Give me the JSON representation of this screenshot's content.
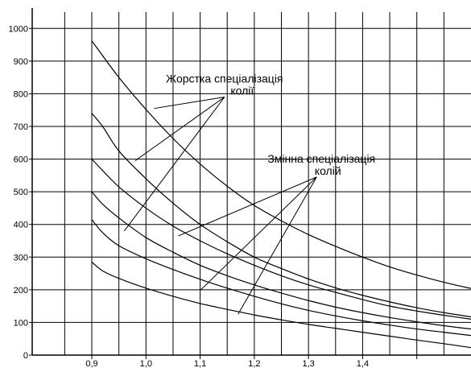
{
  "chart_data": {
    "type": "line",
    "title": "",
    "xlabel": "",
    "ylabel": "",
    "xlim": [
      0.79,
      1.6
    ],
    "ylim": [
      0,
      1050
    ],
    "grid": true,
    "x_tick_values": [
      0.9,
      1.0,
      1.1,
      1.2,
      1.3,
      1.4,
      1.5
    ],
    "x_tick_labels": [
      "0,9",
      "1,0",
      "1,1",
      "1,2",
      "1,3",
      "1,4",
      ""
    ],
    "y_tick_values": [
      0,
      100,
      200,
      300,
      400,
      500,
      600,
      700,
      800,
      900,
      1000
    ],
    "y_tick_labels": [
      "0",
      "100",
      "200",
      "300",
      "400",
      "500",
      "600",
      "700",
      "800",
      "900",
      "1000"
    ],
    "series": [
      {
        "x": [
          0.9,
          0.95,
          1.0,
          1.05,
          1.1,
          1.15,
          1.2,
          1.25,
          1.3,
          1.35,
          1.4,
          1.45,
          1.5,
          1.55,
          1.6
        ],
        "values": [
          962,
          850,
          752,
          663,
          585,
          517,
          458,
          411,
          369,
          333,
          300,
          270,
          245,
          223,
          204
        ]
      },
      {
        "x": [
          0.9,
          0.92,
          0.95,
          1.0,
          1.05,
          1.1,
          1.15,
          1.2,
          1.25,
          1.3,
          1.35,
          1.4,
          1.45,
          1.5,
          1.55,
          1.6
        ],
        "values": [
          740,
          700,
          625,
          540,
          465,
          400,
          347,
          300,
          265,
          233,
          206,
          183,
          163,
          145,
          130,
          117
        ]
      },
      {
        "x": [
          0.9,
          0.92,
          0.95,
          1.0,
          1.05,
          1.1,
          1.15,
          1.2,
          1.25,
          1.3,
          1.35,
          1.4,
          1.45,
          1.5,
          1.55,
          1.6
        ],
        "values": [
          600,
          565,
          515,
          450,
          395,
          350,
          310,
          275,
          243,
          215,
          192,
          170,
          150,
          135,
          122,
          110
        ]
      },
      {
        "x": [
          0.9,
          0.92,
          0.95,
          1.0,
          1.05,
          1.1,
          1.15,
          1.2,
          1.25,
          1.3,
          1.35,
          1.4,
          1.45,
          1.5,
          1.55,
          1.6
        ],
        "values": [
          500,
          462,
          420,
          360,
          315,
          275,
          243,
          215,
          190,
          167,
          147,
          130,
          115,
          102,
          90,
          80
        ]
      },
      {
        "x": [
          0.9,
          0.92,
          0.95,
          1.0,
          1.05,
          1.1,
          1.15,
          1.2,
          1.25,
          1.3,
          1.35,
          1.4,
          1.45,
          1.5,
          1.55,
          1.6
        ],
        "values": [
          415,
          375,
          335,
          295,
          262,
          232,
          205,
          180,
          157,
          137,
          120,
          105,
          92,
          80,
          70,
          60
        ]
      },
      {
        "x": [
          0.9,
          0.92,
          0.95,
          1.0,
          1.05,
          1.1,
          1.15,
          1.2,
          1.25,
          1.3,
          1.35,
          1.4,
          1.45,
          1.5,
          1.55,
          1.6
        ],
        "values": [
          285,
          258,
          235,
          205,
          180,
          158,
          140,
          123,
          108,
          94,
          82,
          70,
          58,
          46,
          35,
          23
        ]
      }
    ],
    "annotations": [
      {
        "lines": [
          "Жорстка спеціалізація",
          "колії"
        ],
        "anchor": [
          1.145,
          790
        ],
        "targets": [
          [
            1.015,
            755
          ],
          [
            0.98,
            595
          ],
          [
            0.96,
            380
          ]
        ]
      },
      {
        "lines": [
          "Змінна спеціалізація",
          "колій"
        ],
        "anchor": [
          1.315,
          545
        ],
        "targets": [
          [
            1.06,
            365
          ],
          [
            1.1,
            198
          ],
          [
            1.17,
            125
          ]
        ]
      }
    ]
  }
}
